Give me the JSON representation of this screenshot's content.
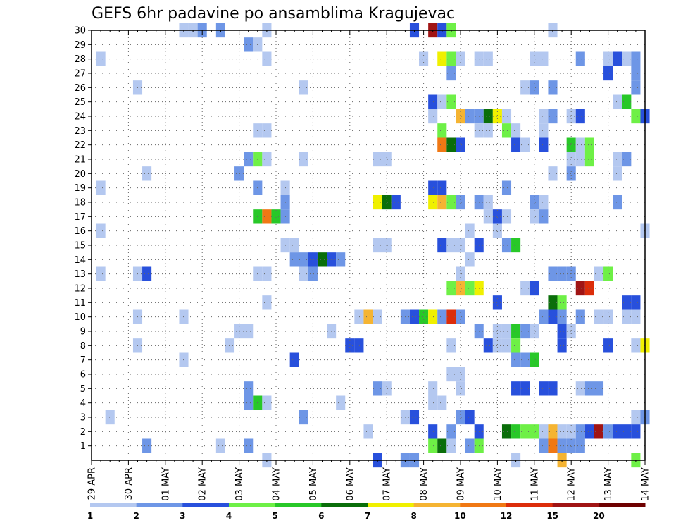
{
  "chart_data": {
    "type": "heatmap",
    "title": "GEFS 6hr padavine po ansamblima Kragujevac",
    "xlabel": "",
    "ylabel": "",
    "x_tick_labels": [
      "29 APR",
      "30 APR",
      "01 MAY",
      "02 MAY",
      "03 MAY",
      "04 MAY",
      "05 MAY",
      "06 MAY",
      "07 MAY",
      "08 MAY",
      "09 MAY",
      "10 MAY",
      "11 MAY",
      "12 MAY",
      "13 MAY",
      "14 MAY"
    ],
    "y_tick_labels": [
      "1",
      "2",
      "3",
      "4",
      "5",
      "6",
      "7",
      "8",
      "9",
      "10",
      "11",
      "12",
      "13",
      "14",
      "15",
      "16",
      "17",
      "18",
      "19",
      "20",
      "21",
      "22",
      "23",
      "24",
      "25",
      "26",
      "27",
      "28",
      "29",
      "30"
    ],
    "x_steps": 60,
    "steps_per_day": 4,
    "members": 30,
    "grid": true,
    "colorbar": {
      "ticks": [
        "1",
        "2",
        "3",
        "4",
        "5",
        "6",
        "7",
        "8",
        "10",
        "12",
        "15",
        "20"
      ],
      "colors": [
        "#b4c8f0",
        "#6e96e6",
        "#2850dc",
        "#6ef046",
        "#28c828",
        "#0a6e0a",
        "#f0f000",
        "#f5b432",
        "#f07814",
        "#dc2d0a",
        "#a01414",
        "#6e0000"
      ]
    },
    "cells": [
      [
        30,
        10,
        0
      ],
      [
        30,
        11,
        0
      ],
      [
        30,
        12,
        1
      ],
      [
        30,
        14,
        1
      ],
      [
        30,
        19,
        0
      ],
      [
        30,
        35,
        2
      ],
      [
        30,
        37,
        10
      ],
      [
        30,
        38,
        2
      ],
      [
        30,
        39,
        3
      ],
      [
        30,
        50,
        0
      ],
      [
        29,
        17,
        1
      ],
      [
        29,
        18,
        0
      ],
      [
        28,
        1,
        0
      ],
      [
        28,
        19,
        0
      ],
      [
        28,
        36,
        0
      ],
      [
        28,
        38,
        6
      ],
      [
        28,
        39,
        3
      ],
      [
        28,
        40,
        0
      ],
      [
        28,
        42,
        0
      ],
      [
        28,
        43,
        0
      ],
      [
        28,
        48,
        0
      ],
      [
        28,
        49,
        0
      ],
      [
        28,
        53,
        1
      ],
      [
        28,
        56,
        0
      ],
      [
        28,
        57,
        2
      ],
      [
        28,
        58,
        0
      ],
      [
        28,
        59,
        1
      ],
      [
        27,
        39,
        1
      ],
      [
        27,
        56,
        2
      ],
      [
        27,
        59,
        1
      ],
      [
        26,
        5,
        0
      ],
      [
        26,
        23,
        0
      ],
      [
        26,
        47,
        0
      ],
      [
        26,
        48,
        1
      ],
      [
        26,
        50,
        1
      ],
      [
        26,
        59,
        1
      ],
      [
        25,
        37,
        2
      ],
      [
        25,
        38,
        0
      ],
      [
        25,
        39,
        3
      ],
      [
        25,
        57,
        0
      ],
      [
        25,
        58,
        4
      ],
      [
        24,
        37,
        0
      ],
      [
        24,
        40,
        7
      ],
      [
        24,
        41,
        1
      ],
      [
        24,
        42,
        1
      ],
      [
        24,
        43,
        5
      ],
      [
        24,
        44,
        6
      ],
      [
        24,
        45,
        0
      ],
      [
        24,
        49,
        0
      ],
      [
        24,
        50,
        1
      ],
      [
        24,
        52,
        0
      ],
      [
        24,
        53,
        2
      ],
      [
        24,
        59,
        3
      ],
      [
        24,
        60,
        2
      ],
      [
        23,
        18,
        0
      ],
      [
        23,
        19,
        0
      ],
      [
        23,
        38,
        3
      ],
      [
        23,
        42,
        0
      ],
      [
        23,
        43,
        0
      ],
      [
        23,
        45,
        3
      ],
      [
        23,
        46,
        0
      ],
      [
        23,
        49,
        0
      ],
      [
        22,
        38,
        8
      ],
      [
        22,
        39,
        5
      ],
      [
        22,
        40,
        2
      ],
      [
        22,
        46,
        2
      ],
      [
        22,
        47,
        0
      ],
      [
        22,
        49,
        2
      ],
      [
        22,
        52,
        4
      ],
      [
        22,
        53,
        0
      ],
      [
        22,
        54,
        3
      ],
      [
        21,
        17,
        1
      ],
      [
        21,
        18,
        3
      ],
      [
        21,
        19,
        0
      ],
      [
        21,
        23,
        0
      ],
      [
        21,
        31,
        0
      ],
      [
        21,
        32,
        0
      ],
      [
        21,
        52,
        0
      ],
      [
        21,
        53,
        0
      ],
      [
        21,
        54,
        3
      ],
      [
        21,
        57,
        0
      ],
      [
        21,
        58,
        1
      ],
      [
        20,
        6,
        0
      ],
      [
        20,
        16,
        1
      ],
      [
        20,
        50,
        0
      ],
      [
        20,
        52,
        1
      ],
      [
        20,
        57,
        0
      ],
      [
        19,
        1,
        0
      ],
      [
        19,
        18,
        1
      ],
      [
        19,
        21,
        0
      ],
      [
        19,
        37,
        2
      ],
      [
        19,
        38,
        2
      ],
      [
        19,
        45,
        1
      ],
      [
        18,
        21,
        1
      ],
      [
        18,
        31,
        6
      ],
      [
        18,
        32,
        5
      ],
      [
        18,
        33,
        2
      ],
      [
        18,
        37,
        6
      ],
      [
        18,
        38,
        7
      ],
      [
        18,
        39,
        3
      ],
      [
        18,
        40,
        1
      ],
      [
        18,
        42,
        1
      ],
      [
        18,
        43,
        0
      ],
      [
        18,
        48,
        1
      ],
      [
        18,
        49,
        0
      ],
      [
        18,
        57,
        1
      ],
      [
        17,
        18,
        4
      ],
      [
        17,
        19,
        8
      ],
      [
        17,
        20,
        4
      ],
      [
        17,
        21,
        1
      ],
      [
        17,
        43,
        0
      ],
      [
        17,
        44,
        2
      ],
      [
        17,
        45,
        0
      ],
      [
        17,
        48,
        0
      ],
      [
        17,
        49,
        1
      ],
      [
        16,
        1,
        0
      ],
      [
        16,
        41,
        0
      ],
      [
        16,
        44,
        0
      ],
      [
        16,
        60,
        0
      ],
      [
        15,
        21,
        0
      ],
      [
        15,
        22,
        0
      ],
      [
        15,
        31,
        0
      ],
      [
        15,
        32,
        0
      ],
      [
        15,
        38,
        2
      ],
      [
        15,
        39,
        0
      ],
      [
        15,
        40,
        0
      ],
      [
        15,
        42,
        2
      ],
      [
        15,
        45,
        1
      ],
      [
        15,
        46,
        4
      ],
      [
        14,
        22,
        1
      ],
      [
        14,
        23,
        1
      ],
      [
        14,
        24,
        2
      ],
      [
        14,
        25,
        5
      ],
      [
        14,
        26,
        2
      ],
      [
        14,
        27,
        1
      ],
      [
        14,
        41,
        0
      ],
      [
        13,
        1,
        0
      ],
      [
        13,
        5,
        0
      ],
      [
        13,
        6,
        2
      ],
      [
        13,
        18,
        0
      ],
      [
        13,
        19,
        0
      ],
      [
        13,
        23,
        0
      ],
      [
        13,
        24,
        1
      ],
      [
        13,
        40,
        0
      ],
      [
        13,
        50,
        1
      ],
      [
        13,
        51,
        1
      ],
      [
        13,
        52,
        1
      ],
      [
        13,
        55,
        0
      ],
      [
        13,
        56,
        3
      ],
      [
        12,
        39,
        3
      ],
      [
        12,
        40,
        7
      ],
      [
        12,
        41,
        3
      ],
      [
        12,
        42,
        6
      ],
      [
        12,
        47,
        0
      ],
      [
        12,
        48,
        2
      ],
      [
        12,
        53,
        10
      ],
      [
        12,
        54,
        9
      ],
      [
        11,
        19,
        0
      ],
      [
        11,
        44,
        2
      ],
      [
        11,
        50,
        5
      ],
      [
        11,
        51,
        3
      ],
      [
        11,
        58,
        2
      ],
      [
        11,
        59,
        2
      ],
      [
        10,
        5,
        0
      ],
      [
        10,
        10,
        0
      ],
      [
        10,
        29,
        0
      ],
      [
        10,
        30,
        7
      ],
      [
        10,
        31,
        0
      ],
      [
        10,
        34,
        1
      ],
      [
        10,
        35,
        2
      ],
      [
        10,
        36,
        4
      ],
      [
        10,
        37,
        6
      ],
      [
        10,
        38,
        1
      ],
      [
        10,
        39,
        9
      ],
      [
        10,
        40,
        1
      ],
      [
        10,
        49,
        1
      ],
      [
        10,
        50,
        2
      ],
      [
        10,
        51,
        1
      ],
      [
        10,
        53,
        1
      ],
      [
        10,
        55,
        0
      ],
      [
        10,
        56,
        0
      ],
      [
        10,
        58,
        0
      ],
      [
        10,
        59,
        0
      ],
      [
        9,
        16,
        0
      ],
      [
        9,
        17,
        0
      ],
      [
        9,
        26,
        0
      ],
      [
        9,
        42,
        1
      ],
      [
        9,
        44,
        0
      ],
      [
        9,
        45,
        0
      ],
      [
        9,
        46,
        4
      ],
      [
        9,
        47,
        1
      ],
      [
        9,
        48,
        0
      ],
      [
        9,
        51,
        2
      ],
      [
        9,
        52,
        0
      ],
      [
        8,
        5,
        0
      ],
      [
        8,
        15,
        0
      ],
      [
        8,
        28,
        2
      ],
      [
        8,
        29,
        2
      ],
      [
        8,
        39,
        0
      ],
      [
        8,
        43,
        2
      ],
      [
        8,
        44,
        0
      ],
      [
        8,
        45,
        0
      ],
      [
        8,
        46,
        3
      ],
      [
        8,
        51,
        2
      ],
      [
        8,
        56,
        2
      ],
      [
        8,
        59,
        0
      ],
      [
        8,
        60,
        6
      ],
      [
        7,
        10,
        0
      ],
      [
        7,
        22,
        2
      ],
      [
        7,
        46,
        1
      ],
      [
        7,
        47,
        1
      ],
      [
        7,
        48,
        4
      ],
      [
        6,
        39,
        0
      ],
      [
        6,
        40,
        0
      ],
      [
        5,
        17,
        1
      ],
      [
        5,
        31,
        1
      ],
      [
        5,
        32,
        0
      ],
      [
        5,
        37,
        0
      ],
      [
        5,
        40,
        0
      ],
      [
        5,
        46,
        2
      ],
      [
        5,
        47,
        2
      ],
      [
        5,
        49,
        2
      ],
      [
        5,
        50,
        2
      ],
      [
        5,
        53,
        0
      ],
      [
        5,
        54,
        1
      ],
      [
        5,
        55,
        1
      ],
      [
        4,
        17,
        1
      ],
      [
        4,
        18,
        4
      ],
      [
        4,
        19,
        0
      ],
      [
        4,
        27,
        0
      ],
      [
        4,
        37,
        0
      ],
      [
        4,
        38,
        0
      ],
      [
        3,
        2,
        0
      ],
      [
        3,
        23,
        1
      ],
      [
        3,
        34,
        0
      ],
      [
        3,
        35,
        2
      ],
      [
        3,
        40,
        1
      ],
      [
        3,
        41,
        2
      ],
      [
        3,
        59,
        0
      ],
      [
        3,
        60,
        1
      ],
      [
        2,
        30,
        0
      ],
      [
        2,
        37,
        2
      ],
      [
        2,
        39,
        1
      ],
      [
        2,
        42,
        2
      ],
      [
        2,
        45,
        5
      ],
      [
        2,
        46,
        4
      ],
      [
        2,
        47,
        3
      ],
      [
        2,
        48,
        3
      ],
      [
        2,
        49,
        0
      ],
      [
        2,
        50,
        7
      ],
      [
        2,
        51,
        0
      ],
      [
        2,
        52,
        0
      ],
      [
        2,
        53,
        1
      ],
      [
        2,
        54,
        2
      ],
      [
        2,
        55,
        10
      ],
      [
        2,
        56,
        1
      ],
      [
        2,
        57,
        2
      ],
      [
        2,
        58,
        2
      ],
      [
        2,
        59,
        2
      ],
      [
        1,
        6,
        1
      ],
      [
        1,
        14,
        0
      ],
      [
        1,
        17,
        1
      ],
      [
        1,
        37,
        3
      ],
      [
        1,
        38,
        5
      ],
      [
        1,
        39,
        0
      ],
      [
        1,
        41,
        1
      ],
      [
        1,
        42,
        3
      ],
      [
        1,
        49,
        1
      ],
      [
        1,
        50,
        8
      ],
      [
        1,
        51,
        1
      ],
      [
        1,
        52,
        1
      ],
      [
        1,
        53,
        1
      ],
      [
        0,
        19,
        0
      ],
      [
        0,
        31,
        2
      ],
      [
        0,
        34,
        1
      ],
      [
        0,
        35,
        1
      ],
      [
        0,
        46,
        0
      ],
      [
        0,
        51,
        7
      ],
      [
        0,
        59,
        3
      ]
    ]
  }
}
